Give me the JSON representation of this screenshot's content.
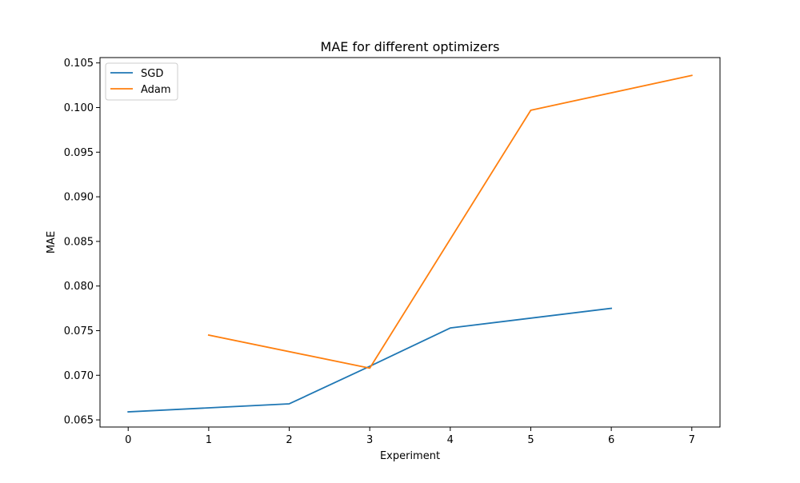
{
  "chart_data": {
    "type": "line",
    "title": "MAE for different optimizers",
    "xlabel": "Experiment",
    "ylabel": "MAE",
    "xlim": [
      -0.35,
      7.35
    ],
    "ylim": [
      0.0642,
      0.1056
    ],
    "xticks": [
      0,
      1,
      2,
      3,
      4,
      5,
      6,
      7
    ],
    "xtick_labels": [
      "0",
      "1",
      "2",
      "3",
      "4",
      "5",
      "6",
      "7"
    ],
    "yticks": [
      0.065,
      0.07,
      0.075,
      0.08,
      0.085,
      0.09,
      0.095,
      0.1,
      0.105
    ],
    "ytick_labels": [
      "0.065",
      "0.070",
      "0.075",
      "0.080",
      "0.085",
      "0.090",
      "0.095",
      "0.100",
      "0.105"
    ],
    "grid": false,
    "legend_position": "top-left",
    "series": [
      {
        "name": "SGD",
        "color": "#1f77b4",
        "x": [
          0,
          2,
          3,
          4,
          6
        ],
        "y": [
          0.0659,
          0.0668,
          0.071,
          0.0753,
          0.0775
        ]
      },
      {
        "name": "Adam",
        "color": "#ff7f0e",
        "x": [
          1,
          3,
          5,
          7
        ],
        "y": [
          0.0745,
          0.0708,
          0.0997,
          0.1036
        ]
      }
    ]
  }
}
